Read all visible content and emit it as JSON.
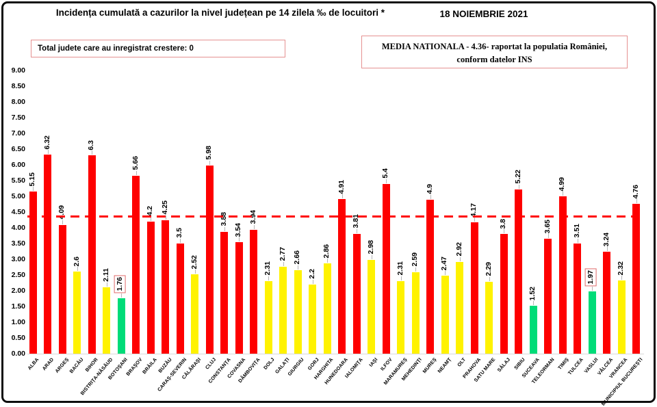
{
  "header": {
    "title": "Incidența cumulată a cazurilor la nivel județean pe 14 zilela ‰ de locuitori *",
    "date": "18 NOIEMBRIE 2021",
    "growth_box_text": "Total judete care au inregistrat crestere: 0",
    "national_average_line1": "MEDIA NATIONALA - 4.36- raportat la populatia României,",
    "national_average_line2": "conform datelor INS"
  },
  "chart_data": {
    "type": "bar",
    "title": "Incidența cumulată a cazurilor la nivel județean pe 14 zilela ‰ de locuitori *",
    "xlabel": "",
    "ylabel": "",
    "ylim": [
      0,
      9
    ],
    "ytick_step": 0.5,
    "yticks": [
      "9.00",
      "8.50",
      "8.00",
      "7.50",
      "7.00",
      "6.50",
      "6.00",
      "5.50",
      "5.00",
      "4.50",
      "4.00",
      "3.50",
      "3.00",
      "2.50",
      "2.00",
      "1.50",
      "1.00",
      "0.50",
      "0.00"
    ],
    "grid": false,
    "legend": false,
    "reference_line": 4.36,
    "categories": [
      "ALBA",
      "ARAD",
      "ARGEȘ",
      "BACĂU",
      "BIHOR",
      "BISTRIȚA-NĂSĂUD",
      "BOTOȘANI",
      "BRAȘOV",
      "BRĂILA",
      "BUZĂU",
      "CARAȘ-SEVERIN",
      "CĂLĂRAȘI",
      "CLUJ",
      "CONSTANȚA",
      "COVASNA",
      "DÂMBOVIȚA",
      "DOLJ",
      "GALAȚI",
      "GIURGIU",
      "GORJ",
      "HARGHITA",
      "HUNEDOARA",
      "IALOMIȚA",
      "IAȘI",
      "ILFOV",
      "MARAMUREȘ",
      "MEHEDINȚI",
      "MUREȘ",
      "NEAMȚ",
      "OLT",
      "PRAHOVA",
      "SATU MARE",
      "SĂLAJ",
      "SIBIU",
      "SUCEAVA",
      "TELEORMAN",
      "TIMIȘ",
      "TULCEA",
      "VASLUI",
      "VÂLCEA",
      "VRANCEA",
      "MUNICIPIUL BUCUREȘTI"
    ],
    "values": [
      5.15,
      6.32,
      4.09,
      2.6,
      6.3,
      2.11,
      1.76,
      5.66,
      4.2,
      4.25,
      3.5,
      2.52,
      5.98,
      3.88,
      3.54,
      3.94,
      2.31,
      2.77,
      2.66,
      2.2,
      2.86,
      4.91,
      3.81,
      2.98,
      5.4,
      2.31,
      2.59,
      4.9,
      2.47,
      2.92,
      4.17,
      2.29,
      3.8,
      5.22,
      1.52,
      3.65,
      4.99,
      3.51,
      1.97,
      3.24,
      2.32,
      4.76
    ],
    "value_labels": [
      "5.15",
      "6.32",
      "4.09",
      "2.6",
      "6.3",
      "2.11",
      "1.76",
      "5.66",
      "4.2",
      "4.25",
      "3.5",
      "2.52",
      "5.98",
      "3.88",
      "3.54",
      "3.94",
      "2.31",
      "2.77",
      "2.66",
      "2.2",
      "2.86",
      "4.91",
      "3.81",
      "2.98",
      "5.4",
      "2.31",
      "2.59",
      "4.9",
      "2.47",
      "2.92",
      "4.17",
      "2.29",
      "3.8",
      "5.22",
      "1.52",
      "3.65",
      "4.99",
      "3.51",
      "1.97",
      "3.24",
      "2.32",
      "4.76"
    ],
    "colors": [
      "red",
      "red",
      "red",
      "yellow",
      "red",
      "yellow",
      "green",
      "red",
      "red",
      "red",
      "red",
      "yellow",
      "red",
      "red",
      "red",
      "red",
      "yellow",
      "yellow",
      "yellow",
      "yellow",
      "yellow",
      "red",
      "red",
      "yellow",
      "red",
      "yellow",
      "yellow",
      "red",
      "yellow",
      "yellow",
      "red",
      "yellow",
      "red",
      "red",
      "green",
      "red",
      "red",
      "red",
      "green",
      "red",
      "yellow",
      "red"
    ],
    "boxed_value_indices": [
      6,
      38
    ],
    "palette": {
      "red": "#fe0000",
      "yellow": "#fff200",
      "green": "#00dc78",
      "reference": "#ff0000",
      "leader": "#b5b5b5",
      "box_border": "#e59090"
    }
  }
}
